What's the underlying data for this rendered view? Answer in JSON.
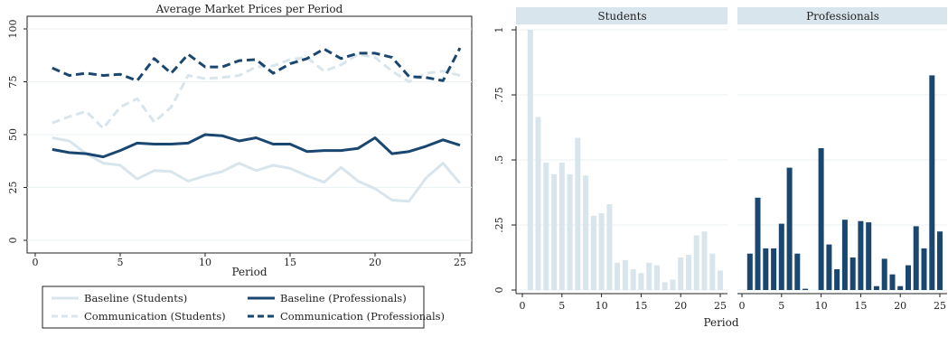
{
  "chart_data": [
    {
      "type": "line",
      "title": "Average Market Prices per Period",
      "xlabel": "Period",
      "ylabel": "",
      "xlim": [
        1,
        25
      ],
      "ylim": [
        0,
        100
      ],
      "x_ticks": [
        "0",
        "5",
        "10",
        "15",
        "20",
        "25"
      ],
      "y_ticks": [
        "0",
        "25",
        "50",
        "75",
        "100"
      ],
      "x": [
        1,
        2,
        3,
        4,
        5,
        6,
        7,
        8,
        9,
        10,
        11,
        12,
        13,
        14,
        15,
        16,
        17,
        18,
        19,
        20,
        21,
        22,
        23,
        24,
        25
      ],
      "grid": true,
      "legend_position": "bottom",
      "series": [
        {
          "name": "Baseline (Students)",
          "color": "#d9e5ec",
          "style": "solid",
          "values": [
            48.5,
            47,
            41,
            36.5,
            35.5,
            29,
            33,
            32.5,
            28,
            30.5,
            32.5,
            36.5,
            33,
            35.5,
            34,
            30.5,
            27.5,
            34.5,
            28,
            24.5,
            19,
            18.5,
            29.5,
            36.5,
            27
          ]
        },
        {
          "name": "Baseline (Professionals)",
          "color": "#1a476f",
          "style": "solid",
          "values": [
            43,
            41.5,
            41,
            39.5,
            42.5,
            46,
            45.5,
            45.5,
            46,
            50,
            49.5,
            47,
            48.5,
            45.5,
            45.5,
            42,
            42.5,
            42.5,
            43.5,
            48.5,
            41,
            42,
            44.5,
            47.5,
            45
          ]
        },
        {
          "name": "Communication (Students)",
          "color": "#d9e5ec",
          "style": "dashed",
          "values": [
            55.5,
            58.5,
            61,
            53,
            63,
            67,
            56,
            63,
            78,
            76.5,
            77,
            78,
            82,
            82.5,
            85.5,
            86.5,
            80,
            83,
            88,
            86.5,
            80,
            75,
            79,
            80,
            78
          ]
        },
        {
          "name": "Communication (Professionals)",
          "color": "#1a476f",
          "style": "dashed",
          "values": [
            81.5,
            78,
            79,
            78,
            78.5,
            75.5,
            86,
            79,
            88,
            82,
            82,
            85,
            85.5,
            79,
            83.5,
            86,
            90.5,
            86,
            88.5,
            88.5,
            86.5,
            77.5,
            77,
            75.5,
            91
          ]
        }
      ]
    },
    {
      "type": "bar",
      "facets": [
        "Students",
        "Professionals"
      ],
      "xlabel": "Period",
      "ylabel": "",
      "ylim": [
        0,
        1
      ],
      "x_ticks": [
        "0",
        "5",
        "10",
        "15",
        "20",
        "25"
      ],
      "y_ticks": [
        "0",
        ".25",
        ".5",
        ".75",
        "1"
      ],
      "categories": [
        1,
        2,
        3,
        4,
        5,
        6,
        7,
        8,
        9,
        10,
        11,
        12,
        13,
        14,
        15,
        16,
        17,
        18,
        19,
        20,
        21,
        22,
        23,
        24,
        25
      ],
      "series": [
        {
          "name": "Students",
          "color": "#d9e5ec",
          "values": [
            1,
            0.665,
            0.49,
            0.445,
            0.49,
            0.445,
            0.585,
            0.44,
            0.285,
            0.295,
            0.33,
            0.105,
            0.115,
            0.08,
            0.065,
            0.105,
            0.095,
            0.03,
            0.04,
            0.125,
            0.135,
            0.21,
            0.225,
            0.14,
            0.075
          ]
        },
        {
          "name": "Professionals",
          "color": "#1a476f",
          "values": [
            0.14,
            0.355,
            0.16,
            0.16,
            0.255,
            0.47,
            0.14,
            0.005,
            0,
            0.545,
            0.175,
            0.08,
            0.27,
            0.125,
            0.265,
            0.26,
            0.015,
            0.12,
            0.06,
            0.015,
            0.095,
            0.245,
            0.16,
            0.825,
            0.225
          ]
        }
      ]
    }
  ]
}
